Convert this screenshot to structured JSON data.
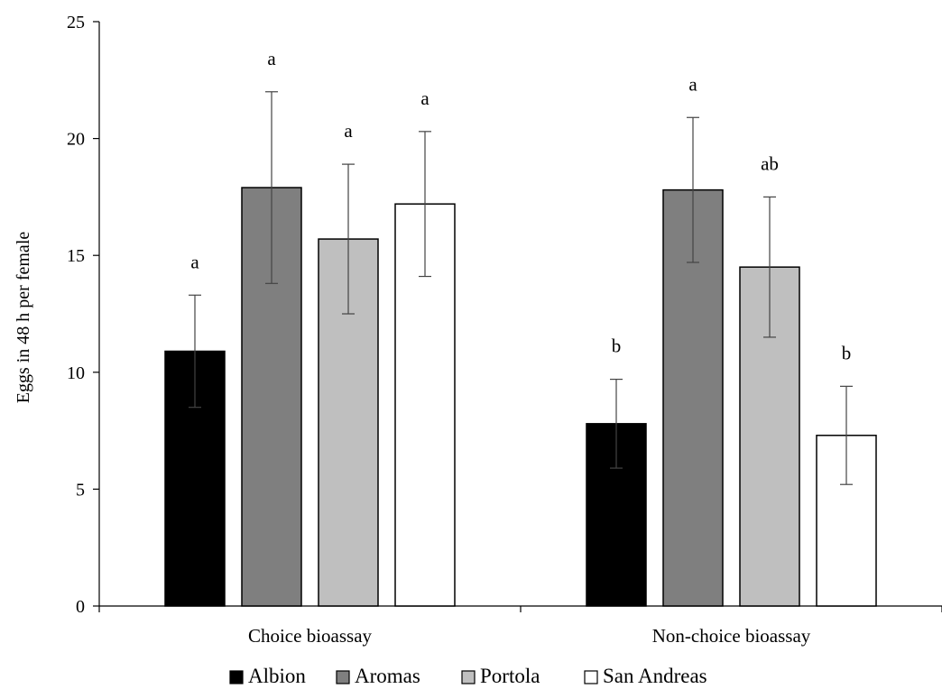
{
  "chart_data": {
    "type": "bar",
    "title": "",
    "xlabel": "",
    "ylabel": "Eggs in 48 h per female",
    "ylim": [
      0,
      25
    ],
    "yticks": [
      0,
      5,
      10,
      15,
      20,
      25
    ],
    "grid": false,
    "legend_position": "bottom",
    "categories": [
      "Choice bioassay",
      "Non-choice bioassay"
    ],
    "series": [
      {
        "name": "Albion",
        "color": "#000000",
        "values": [
          10.9,
          7.8
        ],
        "error": [
          2.4,
          1.9
        ],
        "letters": [
          "a",
          "b"
        ]
      },
      {
        "name": "Aromas",
        "color": "#7f7f7f",
        "values": [
          17.9,
          17.8
        ],
        "error": [
          4.1,
          3.1
        ],
        "letters": [
          "a",
          "a"
        ]
      },
      {
        "name": "Portola",
        "color": "#bfbfbf",
        "values": [
          15.7,
          14.5
        ],
        "error": [
          3.2,
          3.0
        ],
        "letters": [
          "a",
          "ab"
        ]
      },
      {
        "name": "San Andreas",
        "color": "#ffffff",
        "values": [
          17.2,
          7.3
        ],
        "error": [
          3.1,
          2.1
        ],
        "letters": [
          "a",
          "b"
        ]
      }
    ]
  }
}
